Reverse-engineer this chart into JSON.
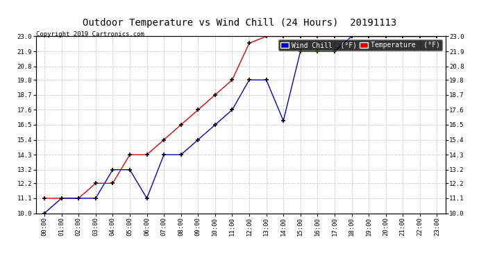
{
  "title": "Outdoor Temperature vs Wind Chill (24 Hours)  20191113",
  "copyright": "Copyright 2019 Cartronics.com",
  "background_color": "#ffffff",
  "plot_bg_color": "#ffffff",
  "grid_color": "#c8c8c8",
  "x_labels": [
    "00:00",
    "01:00",
    "02:00",
    "03:00",
    "04:00",
    "05:00",
    "06:00",
    "07:00",
    "08:00",
    "09:00",
    "10:00",
    "11:00",
    "12:00",
    "13:00",
    "14:00",
    "15:00",
    "16:00",
    "17:00",
    "18:00",
    "19:00",
    "20:00",
    "21:00",
    "22:00",
    "23:00"
  ],
  "ylim": [
    10.0,
    23.0
  ],
  "yticks_left": [
    10.0,
    11.1,
    12.2,
    13.2,
    14.3,
    15.4,
    16.5,
    17.6,
    18.7,
    19.8,
    20.8,
    21.9,
    23.0
  ],
  "yticks_right": [
    10.0,
    11.1,
    12.2,
    13.2,
    14.3,
    15.4,
    16.5,
    17.6,
    18.7,
    19.8,
    20.8,
    21.9,
    23.0
  ],
  "temperature_color": "#dd0000",
  "windchill_color": "#0000cc",
  "marker": "+",
  "temperature_data": [
    11.1,
    11.1,
    11.1,
    12.2,
    12.2,
    14.3,
    14.3,
    15.4,
    16.5,
    17.6,
    18.7,
    19.8,
    22.5,
    23.0,
    23.0,
    23.0,
    23.0,
    23.0,
    23.0,
    23.0,
    23.0,
    23.0,
    23.0,
    23.0
  ],
  "windchill_data": [
    10.0,
    11.1,
    11.1,
    11.1,
    13.2,
    13.2,
    11.1,
    14.3,
    14.3,
    15.4,
    16.5,
    17.6,
    19.8,
    19.8,
    16.8,
    21.9,
    21.9,
    21.9,
    23.0,
    23.0,
    23.0,
    23.0,
    23.0,
    23.0
  ],
  "legend_windchill_label": "Wind Chill  (°F)",
  "legend_temperature_label": "Temperature  (°F)"
}
